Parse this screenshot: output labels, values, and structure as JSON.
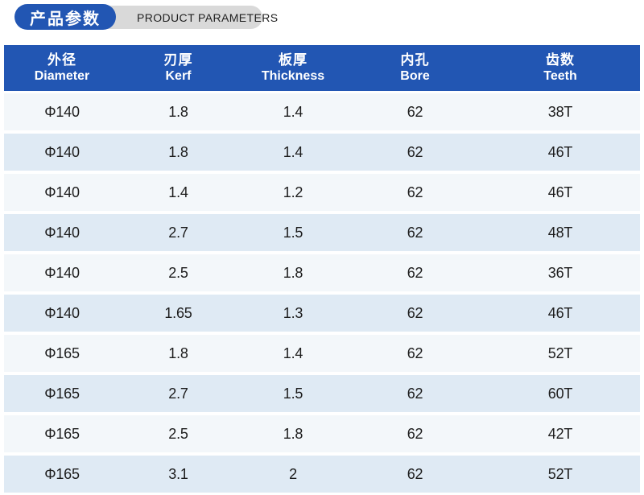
{
  "header": {
    "badge_cn": "产品参数",
    "badge_en": "PRODUCT PARAMETERS"
  },
  "colors": {
    "accent_blue": "#2256b3",
    "pill_gray": "#d9d9d9",
    "row_light": "#f3f7fa",
    "row_blue": "#dfeaf4"
  },
  "table": {
    "columns": [
      {
        "cn": "外径",
        "en": "Diameter"
      },
      {
        "cn": "刃厚",
        "en": "Kerf"
      },
      {
        "cn": "板厚",
        "en": "Thickness"
      },
      {
        "cn": "内孔",
        "en": "Bore"
      },
      {
        "cn": "齿数",
        "en": "Teeth"
      }
    ],
    "rows": [
      [
        "Φ140",
        "1.8",
        "1.4",
        "62",
        "38T"
      ],
      [
        "Φ140",
        "1.8",
        "1.4",
        "62",
        "46T"
      ],
      [
        "Φ140",
        "1.4",
        "1.2",
        "62",
        "46T"
      ],
      [
        "Φ140",
        "2.7",
        "1.5",
        "62",
        "48T"
      ],
      [
        "Φ140",
        "2.5",
        "1.8",
        "62",
        "36T"
      ],
      [
        "Φ140",
        "1.65",
        "1.3",
        "62",
        "46T"
      ],
      [
        "Φ165",
        "1.8",
        "1.4",
        "62",
        "52T"
      ],
      [
        "Φ165",
        "2.7",
        "1.5",
        "62",
        "60T"
      ],
      [
        "Φ165",
        "2.5",
        "1.8",
        "62",
        "42T"
      ],
      [
        "Φ165",
        "3.1",
        "2",
        "62",
        "52T"
      ]
    ]
  }
}
